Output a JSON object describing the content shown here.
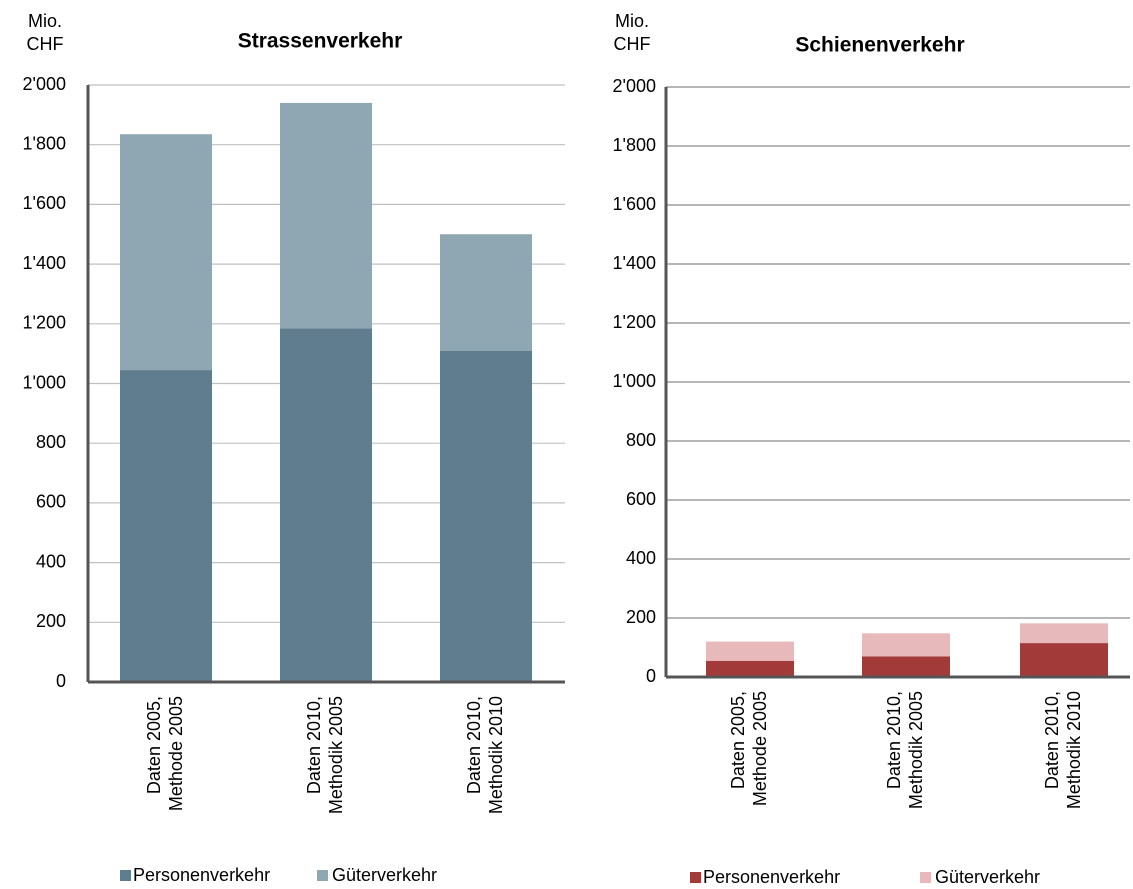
{
  "chart_data": [
    {
      "type": "stacked_bar",
      "title": "Strassenverkehr",
      "ylabel": [
        "Mio.",
        "CHF"
      ],
      "categories": [
        [
          "Daten 2005,",
          "Methode 2005"
        ],
        [
          "Daten 2010,",
          "Methodik 2005"
        ],
        [
          "Daten 2010,",
          "Methodik 2010"
        ]
      ],
      "series": [
        {
          "name": "Personenverkehr",
          "color": "#5f7d8f",
          "values": [
            1045,
            1185,
            1110
          ]
        },
        {
          "name": "Güterverkehr",
          "color": "#8fa6b3",
          "values": [
            790,
            755,
            390
          ]
        }
      ],
      "ylim": [
        0,
        2000
      ],
      "yticks": [
        0,
        200,
        400,
        600,
        800,
        {
          "value": 1000,
          "label": "1'000"
        },
        {
          "value": 1200,
          "label": "1'200"
        },
        {
          "value": 1400,
          "label": "1'400"
        },
        {
          "value": 1600,
          "label": "1'600"
        },
        {
          "value": 1800,
          "label": "1'800"
        },
        {
          "value": 2000,
          "label": "2'000"
        }
      ],
      "grid": true,
      "legend": "bottom"
    },
    {
      "type": "stacked_bar",
      "title": "Schienenverkehr",
      "ylabel": [
        "Mio.",
        "CHF"
      ],
      "categories": [
        [
          "Daten 2005,",
          "Methode 2005"
        ],
        [
          "Daten 2010,",
          "Methodik 2005"
        ],
        [
          "Daten 2010,",
          "Methodik 2010"
        ]
      ],
      "series": [
        {
          "name": "Personenverkehr",
          "color": "#a33a3a",
          "values": [
            55,
            70,
            115
          ]
        },
        {
          "name": "Güterverkehr",
          "color": "#e8b9bb",
          "values": [
            65,
            78,
            67
          ]
        }
      ],
      "ylim": [
        0,
        2000
      ],
      "yticks": [
        0,
        200,
        400,
        600,
        800,
        {
          "value": 1000,
          "label": "1'000"
        },
        {
          "value": 1200,
          "label": "1'200"
        },
        {
          "value": 1400,
          "label": "1'400"
        },
        {
          "value": 1600,
          "label": "1'600"
        },
        {
          "value": 1800,
          "label": "1'800"
        },
        {
          "value": 2000,
          "label": "2'000"
        }
      ],
      "grid": true,
      "legend": "bottom"
    }
  ]
}
